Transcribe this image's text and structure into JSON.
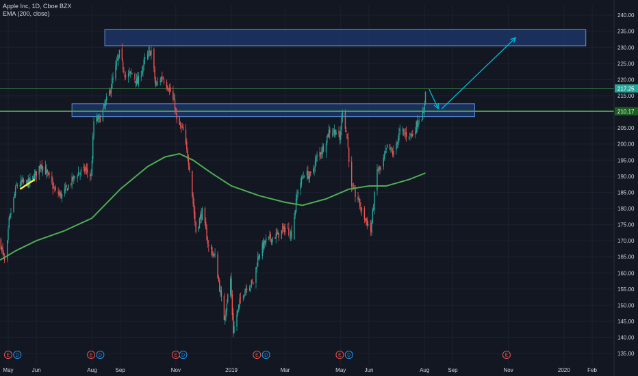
{
  "header": {
    "symbol": "Apple Inc, 1D, Cboe BZX",
    "indicator": "EMA (200, close)"
  },
  "colors": {
    "background": "#131722",
    "up": "#26a69a",
    "down": "#ef5350",
    "ema": "#4caf50",
    "zone_fill": "#1e3a6e",
    "zone_border": "#5b8fd6",
    "arrow": "#00bcd4",
    "trendline": "#ffeb3b",
    "level_line": "#4caf50",
    "price_tag_top": "#26a69a",
    "price_tag_level": "#1b5e20"
  },
  "chart_data": {
    "type": "candlestick",
    "ylim": [
      131,
      243
    ],
    "y_ticks": [
      135,
      140,
      145,
      150,
      155,
      160,
      165,
      170,
      175,
      180,
      185,
      190,
      195,
      200,
      205,
      210,
      215,
      220,
      225,
      230,
      235,
      240
    ],
    "y_tick_labels": [
      "135.00",
      "140.00",
      "145.00",
      "150.00",
      "155.00",
      "160.00",
      "165.00",
      "170.00",
      "175.00",
      "180.00",
      "185.00",
      "190.00",
      "195.00",
      "200.00",
      "205.00",
      "210.00",
      "215.00",
      "220.00",
      "225.00",
      "230.00",
      "235.00",
      "240.00"
    ],
    "x_range": [
      "2018-04-22",
      "2020-02-25"
    ],
    "x_ticks": [
      {
        "label": "May",
        "date": "2018-05-01"
      },
      {
        "label": "Jun",
        "date": "2018-06-01"
      },
      {
        "label": "Aug",
        "date": "2018-08-01"
      },
      {
        "label": "Sep",
        "date": "2018-09-01"
      },
      {
        "label": "Nov",
        "date": "2018-11-01"
      },
      {
        "label": "2019",
        "date": "2019-01-01"
      },
      {
        "label": "Mar",
        "date": "2019-03-01"
      },
      {
        "label": "May",
        "date": "2019-05-01"
      },
      {
        "label": "Jun",
        "date": "2019-06-01"
      },
      {
        "label": "Aug",
        "date": "2019-08-01"
      },
      {
        "label": "Sep",
        "date": "2019-09-01"
      },
      {
        "label": "Nov",
        "date": "2019-11-01"
      },
      {
        "label": "2020",
        "date": "2020-01-01"
      },
      {
        "label": "Feb",
        "date": "2020-02-01"
      }
    ],
    "price_path": [
      [
        "2018-04-22",
        170
      ],
      [
        "2018-04-28",
        162
      ],
      [
        "2018-05-02",
        176
      ],
      [
        "2018-05-10",
        187
      ],
      [
        "2018-05-16",
        188
      ],
      [
        "2018-05-24",
        188
      ],
      [
        "2018-06-01",
        191
      ],
      [
        "2018-06-06",
        194
      ],
      [
        "2018-06-14",
        190
      ],
      [
        "2018-06-22",
        185
      ],
      [
        "2018-06-29",
        184
      ],
      [
        "2018-07-06",
        187
      ],
      [
        "2018-07-16",
        191
      ],
      [
        "2018-07-25",
        192
      ],
      [
        "2018-07-31",
        190
      ],
      [
        "2018-08-03",
        207
      ],
      [
        "2018-08-10",
        208
      ],
      [
        "2018-08-20",
        216
      ],
      [
        "2018-08-31",
        228
      ],
      [
        "2018-09-07",
        221
      ],
      [
        "2018-09-14",
        222
      ],
      [
        "2018-09-20",
        219
      ],
      [
        "2018-09-28",
        226
      ],
      [
        "2018-10-05",
        229
      ],
      [
        "2018-10-10",
        218
      ],
      [
        "2018-10-17",
        221
      ],
      [
        "2018-10-25",
        217
      ],
      [
        "2018-10-31",
        212
      ],
      [
        "2018-11-02",
        207
      ],
      [
        "2018-11-09",
        204
      ],
      [
        "2018-11-16",
        193
      ],
      [
        "2018-11-23",
        173
      ],
      [
        "2018-11-30",
        179
      ],
      [
        "2018-12-07",
        168
      ],
      [
        "2018-12-14",
        165
      ],
      [
        "2018-12-24",
        146
      ],
      [
        "2018-12-31",
        158
      ],
      [
        "2019-01-03",
        142
      ],
      [
        "2019-01-11",
        152
      ],
      [
        "2019-01-18",
        156
      ],
      [
        "2019-01-25",
        157
      ],
      [
        "2019-01-31",
        166
      ],
      [
        "2019-02-08",
        170
      ],
      [
        "2019-02-15",
        171
      ],
      [
        "2019-02-22",
        172
      ],
      [
        "2019-03-01",
        174
      ],
      [
        "2019-03-08",
        172
      ],
      [
        "2019-03-15",
        186
      ],
      [
        "2019-03-22",
        191
      ],
      [
        "2019-03-29",
        190
      ],
      [
        "2019-04-05",
        196
      ],
      [
        "2019-04-12",
        199
      ],
      [
        "2019-04-18",
        204
      ],
      [
        "2019-04-26",
        204
      ],
      [
        "2019-04-30",
        201
      ],
      [
        "2019-05-03",
        211
      ],
      [
        "2019-05-08",
        202
      ],
      [
        "2019-05-13",
        186
      ],
      [
        "2019-05-20",
        183
      ],
      [
        "2019-05-24",
        179
      ],
      [
        "2019-05-31",
        175
      ],
      [
        "2019-06-03",
        173
      ],
      [
        "2019-06-10",
        192
      ],
      [
        "2019-06-14",
        192
      ],
      [
        "2019-06-21",
        199
      ],
      [
        "2019-06-28",
        197
      ],
      [
        "2019-07-05",
        204
      ],
      [
        "2019-07-12",
        203
      ],
      [
        "2019-07-19",
        203
      ],
      [
        "2019-07-26",
        208
      ],
      [
        "2019-07-31",
        209
      ],
      [
        "2019-08-01",
        213
      ],
      [
        "2019-08-02",
        217.25
      ]
    ],
    "ema_200": [
      [
        "2018-04-22",
        164
      ],
      [
        "2018-05-10",
        167
      ],
      [
        "2018-06-01",
        170
      ],
      [
        "2018-07-01",
        173
      ],
      [
        "2018-08-01",
        177
      ],
      [
        "2018-09-01",
        186
      ],
      [
        "2018-10-01",
        193
      ],
      [
        "2018-10-20",
        196
      ],
      [
        "2018-11-05",
        197
      ],
      [
        "2018-11-20",
        195
      ],
      [
        "2018-12-10",
        191
      ],
      [
        "2019-01-01",
        187
      ],
      [
        "2019-01-31",
        184
      ],
      [
        "2019-02-28",
        182
      ],
      [
        "2019-03-20",
        181
      ],
      [
        "2019-04-15",
        183
      ],
      [
        "2019-05-10",
        186
      ],
      [
        "2019-06-01",
        187
      ],
      [
        "2019-06-20",
        187
      ],
      [
        "2019-07-15",
        189
      ],
      [
        "2019-08-02",
        191
      ]
    ],
    "zones": [
      {
        "from": "2018-08-15",
        "to": "2020-01-25",
        "y_low": 230.5,
        "y_high": 235.5
      },
      {
        "from": "2018-07-10",
        "to": "2019-09-25",
        "y_low": 208.5,
        "y_high": 212.5
      }
    ],
    "horizontal_lines": [
      {
        "y": 210.17,
        "style": "thick"
      },
      {
        "y": 217.25,
        "style": "thin"
      }
    ],
    "price_tags": [
      {
        "value": 217.25,
        "text": "217.25"
      },
      {
        "value": 210.17,
        "text": "210.17"
      }
    ],
    "arrows": [
      {
        "from": [
          "2019-08-06",
          217
        ],
        "to": [
          "2019-08-16",
          211
        ]
      },
      {
        "from": [
          "2019-08-20",
          211
        ],
        "to": [
          "2019-11-09",
          233
        ]
      }
    ],
    "trendline": {
      "from": [
        "2018-05-14",
        186
      ],
      "to": [
        "2018-05-30",
        189
      ]
    },
    "events": [
      {
        "type": "E",
        "date": "2018-05-01",
        "color": "#ef5350"
      },
      {
        "type": "D",
        "date": "2018-05-11",
        "color": "#2196f3"
      },
      {
        "type": "E",
        "date": "2018-07-31",
        "color": "#ef5350"
      },
      {
        "type": "D",
        "date": "2018-08-10",
        "color": "#2196f3"
      },
      {
        "type": "E",
        "date": "2018-11-01",
        "color": "#ef5350"
      },
      {
        "type": "D",
        "date": "2018-11-09",
        "color": "#2196f3"
      },
      {
        "type": "E",
        "date": "2019-01-29",
        "color": "#ef5350"
      },
      {
        "type": "D",
        "date": "2019-02-08",
        "color": "#2196f3"
      },
      {
        "type": "E",
        "date": "2019-04-30",
        "color": "#ef5350"
      },
      {
        "type": "D",
        "date": "2019-05-10",
        "color": "#2196f3"
      },
      {
        "type": "E",
        "date": "2019-10-30",
        "color": "#ef5350"
      }
    ]
  }
}
